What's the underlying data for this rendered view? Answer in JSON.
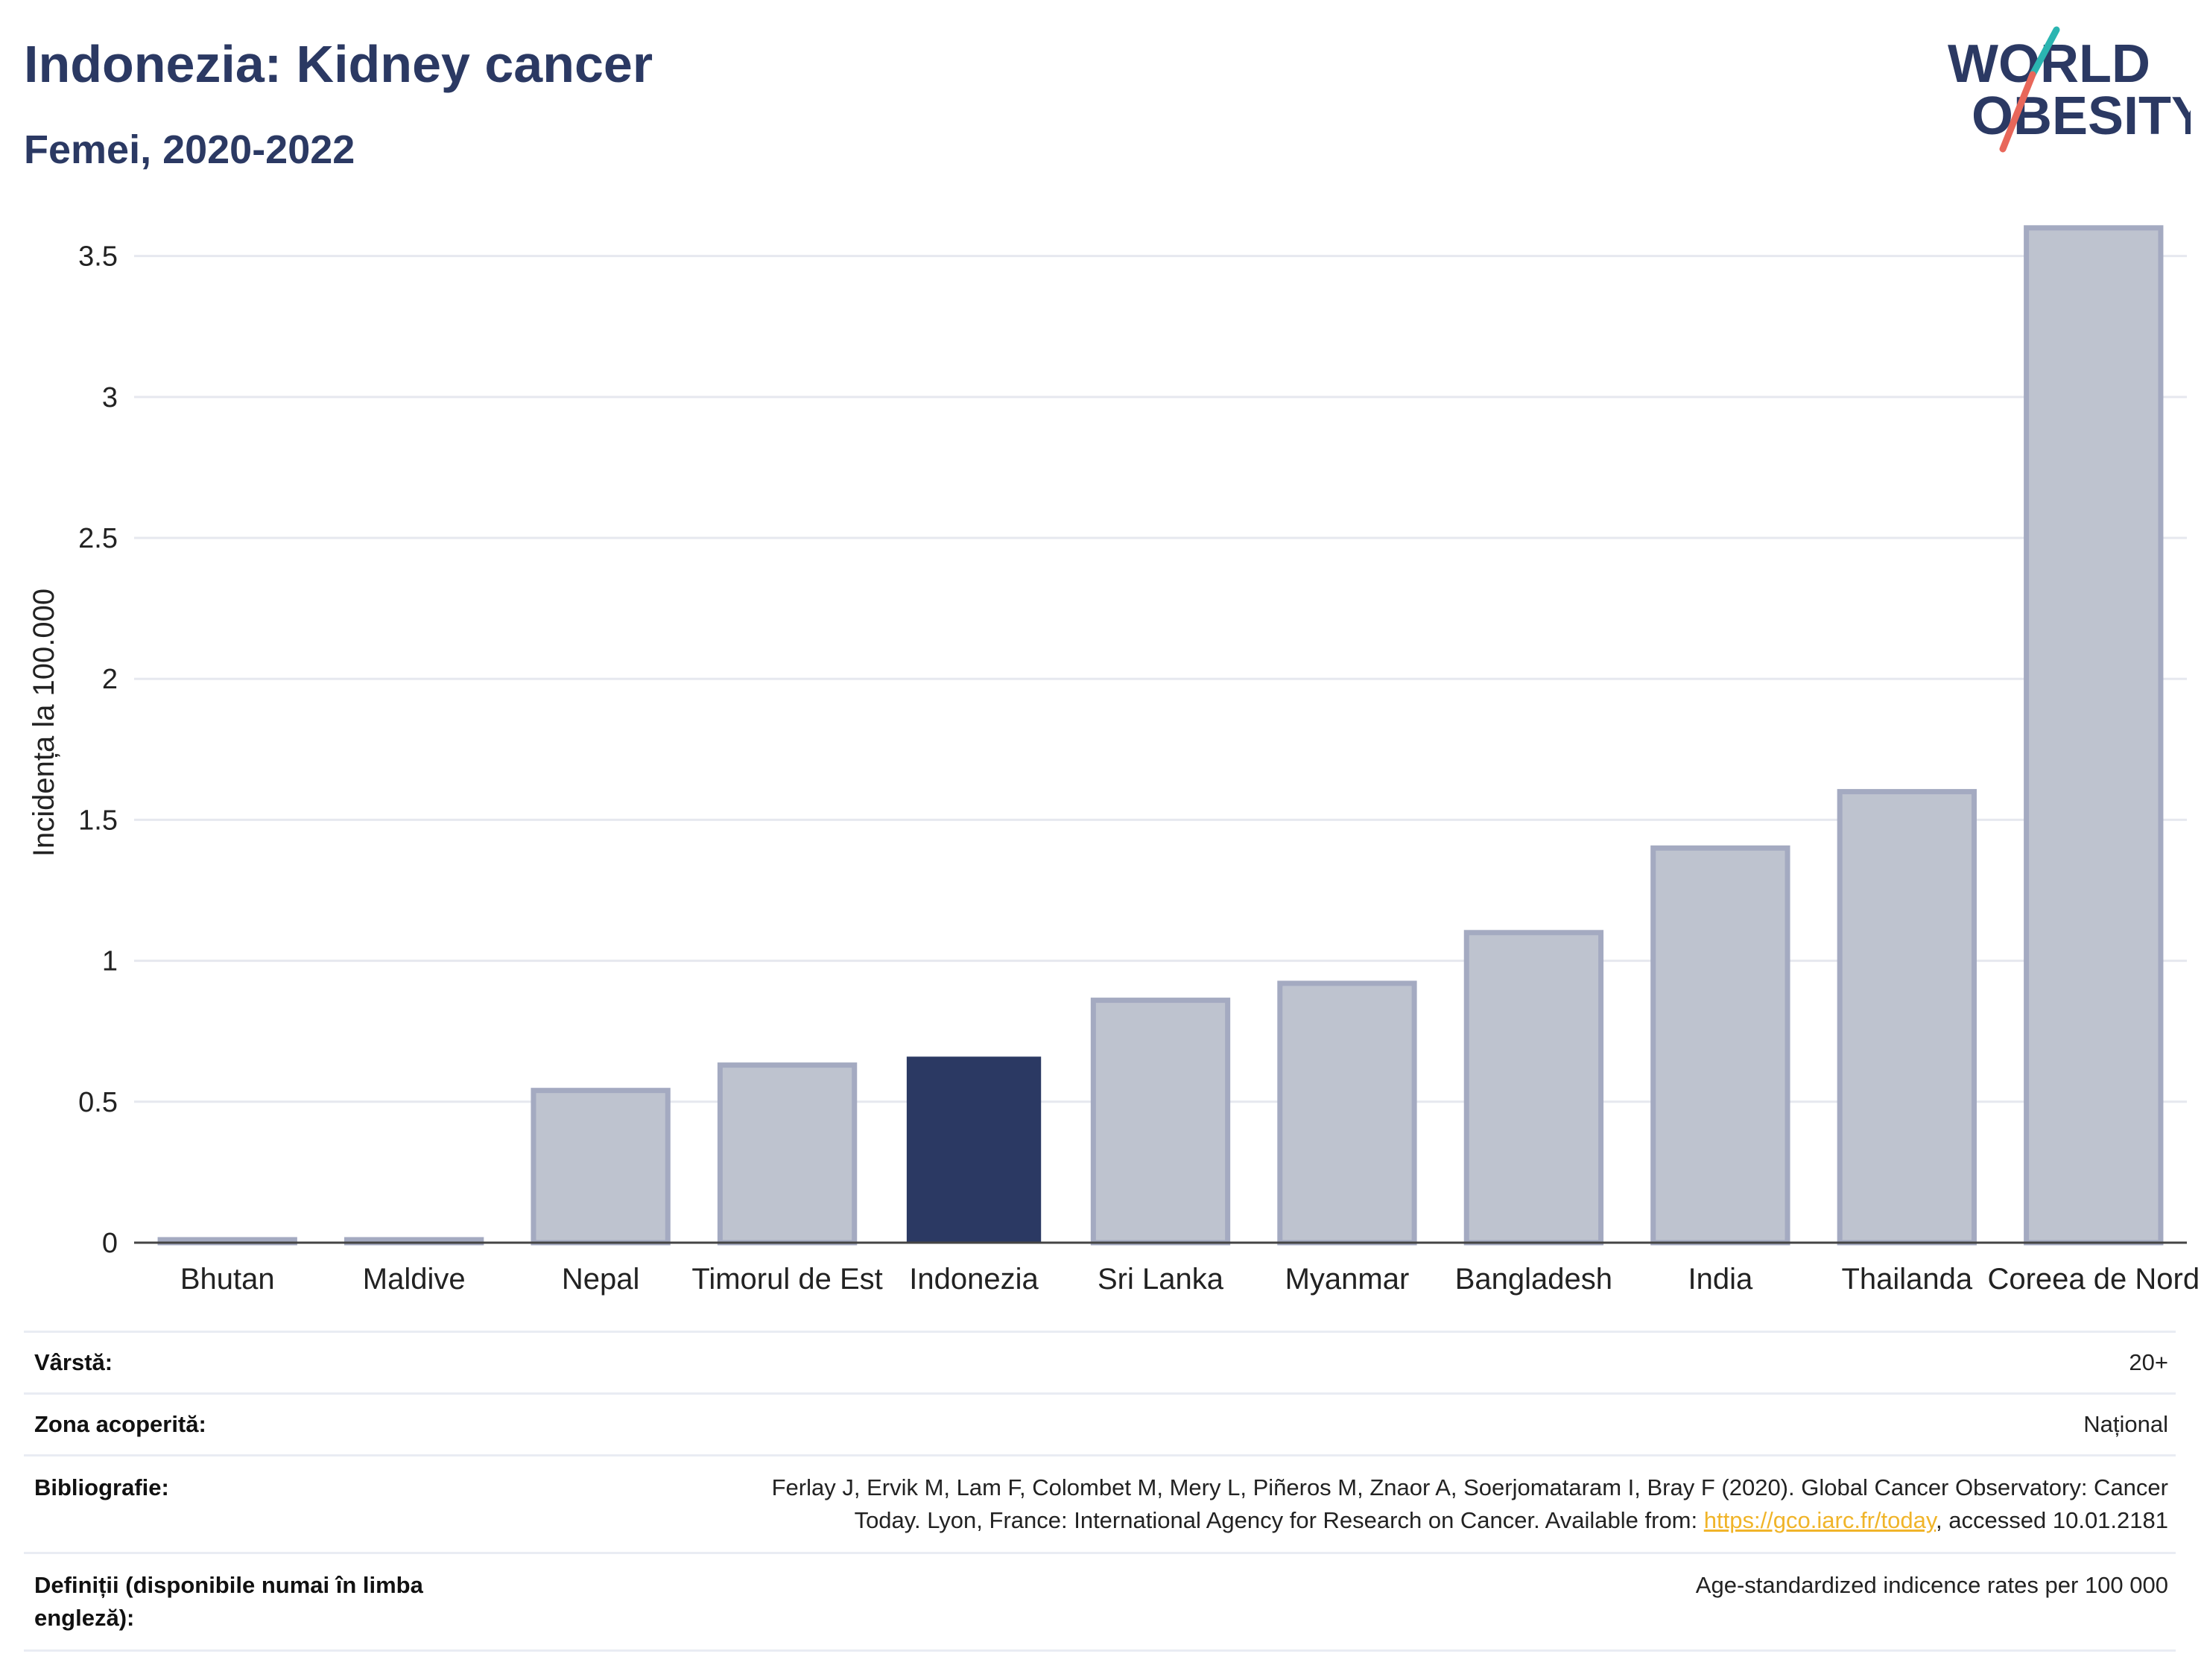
{
  "header": {
    "title": "Indonezia: Kidney cancer",
    "subtitle": "Femei, 2020-2022"
  },
  "logo": {
    "line1": "WORLD",
    "line2": "OBESITY",
    "accent_teal": "#2bb5b1",
    "accent_red": "#e8675a"
  },
  "colors": {
    "highlight_bar": "#2b3963",
    "other_bar_fill": "#bec3cf",
    "other_bar_stroke": "#a4aac1",
    "grid": "#e6e8ef",
    "text_dark": "#2b3963"
  },
  "chart_data": {
    "type": "bar",
    "ylabel": "Incidența la 100.000",
    "ylim": [
      0,
      3.7
    ],
    "yticks": [
      0,
      0.5,
      1,
      1.5,
      2,
      2.5,
      3,
      3.5
    ],
    "ytick_labels": [
      "0",
      "0.5",
      "1",
      "1.5",
      "2",
      "2.5",
      "3",
      "3.5"
    ],
    "highlight": "Indonezia",
    "grid": true,
    "categories": [
      "Bhutan",
      "Maldive",
      "Nepal",
      "Timorul de Est",
      "Indonezia",
      "Sri Lanka",
      "Myanmar",
      "Bangladesh",
      "India",
      "Thailanda",
      "Coreea de Nord"
    ],
    "values": [
      0.01,
      0.01,
      0.54,
      0.63,
      0.66,
      0.86,
      0.92,
      1.1,
      1.4,
      1.6,
      3.6
    ]
  },
  "meta": {
    "age_label": "Vârstă:",
    "age_value": "20+",
    "coverage_label": "Zona acoperită:",
    "coverage_value": "Național",
    "bibliography_label": "Bibliografie:",
    "bibliography_line1": "Ferlay J, Ervik M, Lam F, Colombet M, Mery L, Piñeros M, Znaor A, Soerjomataram I, Bray F (2020). Global Cancer Observatory: Cancer",
    "bibliography_line2_pre": "Today. Lyon, France: International Agency for Research on Cancer. Available from: ",
    "bibliography_link": "https://gco.iarc.fr/today",
    "bibliography_line2_post": ", accessed 10.01.2181",
    "definitions_label": "Definiții (disponibile numai în limba engleză):",
    "definitions_value": "Age-standardized indicence rates per 100 000"
  }
}
